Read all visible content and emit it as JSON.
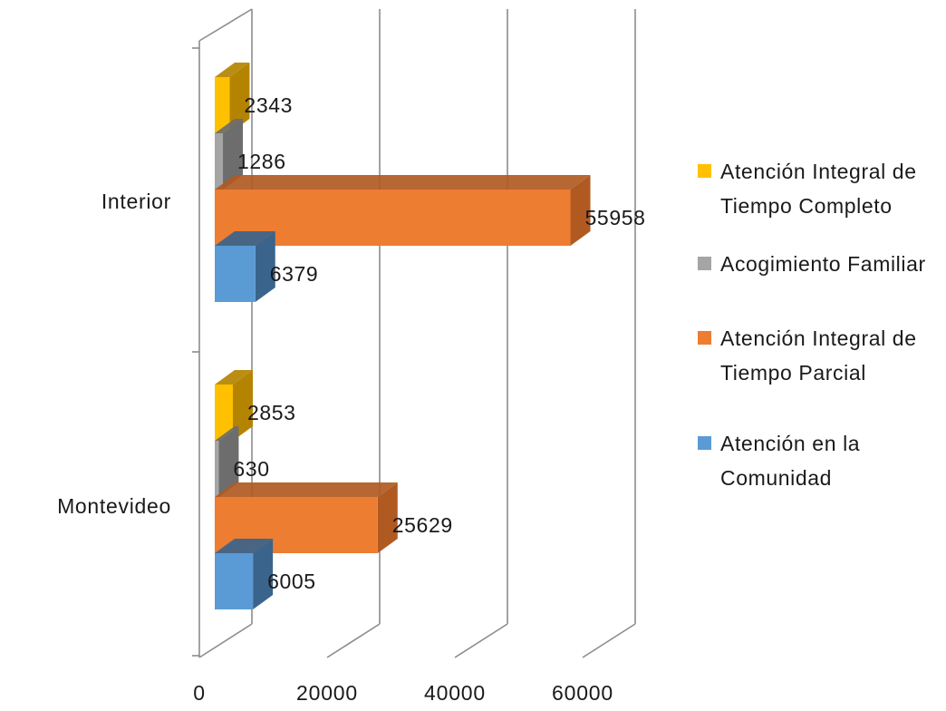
{
  "chart_data": {
    "type": "bar",
    "orientation": "horizontal",
    "style": "3d-clustered",
    "categories": [
      "Interior",
      "Montevideo"
    ],
    "series": [
      {
        "name": "Atención Integral de Tiempo Completo",
        "values": [
          2343,
          2853
        ],
        "color": "#FFC000",
        "side": "#B48400"
      },
      {
        "name": "Acogimiento Familiar",
        "values": [
          1286,
          630
        ],
        "color": "#A5A5A5",
        "side": "#6D6D6D"
      },
      {
        "name": "Atención Integral de Tiempo Parcial",
        "values": [
          55958,
          25629
        ],
        "color": "#ED7D31",
        "side": "#B05A22"
      },
      {
        "name": "Atención en la Comunidad",
        "values": [
          6379,
          6005
        ],
        "color": "#5B9BD5",
        "side": "#3A648B"
      }
    ],
    "data_labels": [
      [
        "2343",
        "1286",
        "55958",
        "6379"
      ],
      [
        "2853",
        "630",
        "25629",
        "6005"
      ]
    ],
    "x_ticks": [
      "0",
      "20000",
      "40000",
      "60000"
    ],
    "xlim": [
      0,
      60000
    ],
    "grid": true,
    "legend_position": "right"
  }
}
